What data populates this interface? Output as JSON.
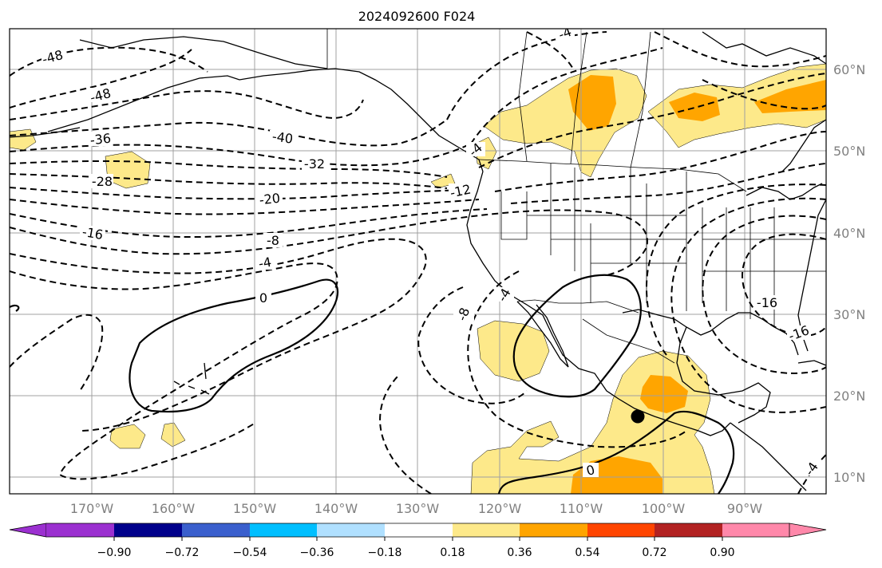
{
  "title": "2024092600 F024",
  "lon_labels": [
    "170°W",
    "160°W",
    "150°W",
    "140°W",
    "130°W",
    "120°W",
    "110°W",
    "100°W",
    "90°W"
  ],
  "lat_labels": [
    "60°N",
    "50°N",
    "40°N",
    "30°N",
    "20°N",
    "10°N"
  ],
  "contour_labels": [
    "-48",
    "-48",
    "-36",
    "-28",
    "-40",
    "-32",
    "-20",
    "-16",
    "-12",
    "-8",
    "-4",
    "0",
    "0",
    "-8",
    "-4",
    "-16",
    "-16",
    "-4",
    "-4",
    "-4"
  ],
  "colorbar": {
    "ticks": [
      "−0.90",
      "−0.72",
      "−0.54",
      "−0.36",
      "−0.18",
      "0.18",
      "0.36",
      "0.54",
      "0.72",
      "0.90"
    ],
    "colors": [
      "#9b30d0",
      "#00008b",
      "#3a5fcd",
      "#00bfff",
      "#b0e0ff",
      "#ffffff",
      "#fde98a",
      "#ffa500",
      "#ff4500",
      "#b22222",
      "#ff88aa"
    ]
  },
  "marker": "storm-center-dot"
}
